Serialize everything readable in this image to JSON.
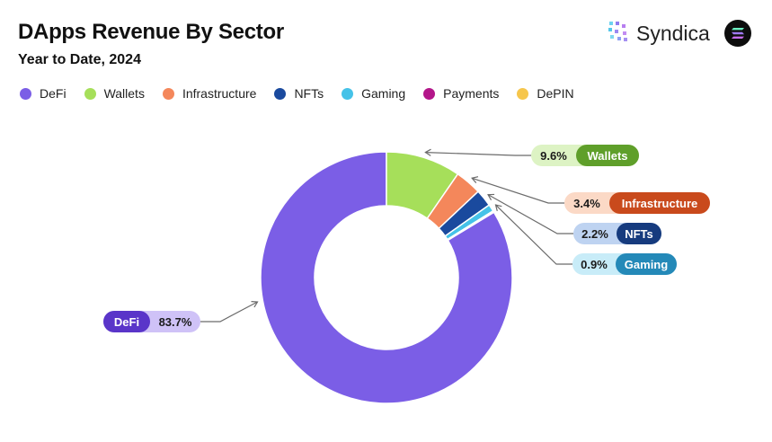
{
  "header": {
    "title": "DApps Revenue By Sector",
    "subtitle": "Year to Date, 2024"
  },
  "brand": {
    "name": "Syndica",
    "icon": "syndica-logo-icon",
    "badge_icon": "solana-logo-icon"
  },
  "colors": {
    "DeFi": "#7b5ee6",
    "Wallets": "#a6df5a",
    "Infrastructure": "#f4875b",
    "NFTs": "#1a4a9e",
    "Gaming": "#45c2e8",
    "Payments": "#b3168a",
    "DePIN": "#f6c64c"
  },
  "chart_data": {
    "type": "pie",
    "variant": "donut",
    "title": "DApps Revenue By Sector",
    "subtitle": "Year to Date, 2024",
    "legend_position": "top-left",
    "categories": [
      "DeFi",
      "Wallets",
      "Infrastructure",
      "NFTs",
      "Gaming",
      "Payments",
      "DePIN"
    ],
    "values": [
      83.7,
      9.6,
      3.4,
      2.2,
      0.9,
      0.1,
      0.1
    ],
    "labels": [
      {
        "name": "DeFi",
        "value": "83.7%"
      },
      {
        "name": "Wallets",
        "value": "9.6%"
      },
      {
        "name": "Infrastructure",
        "value": "3.4%"
      },
      {
        "name": "NFTs",
        "value": "2.2%"
      },
      {
        "name": "Gaming",
        "value": "0.9%"
      }
    ]
  }
}
